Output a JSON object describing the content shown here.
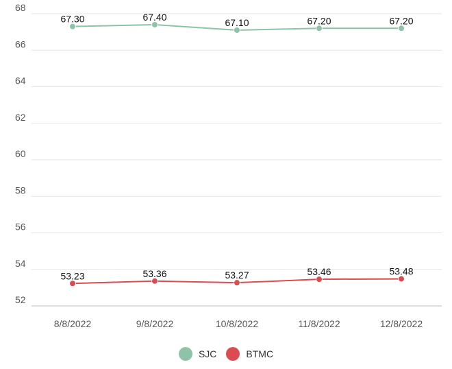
{
  "chart_data": {
    "type": "line",
    "title": "",
    "xlabel": "",
    "ylabel": "",
    "categories": [
      "8/8/2022",
      "9/8/2022",
      "10/8/2022",
      "11/8/2022",
      "12/8/2022"
    ],
    "ylim": [
      52,
      68
    ],
    "yticks": [
      "52",
      "54",
      "56",
      "58",
      "60",
      "62",
      "64",
      "66",
      "68"
    ],
    "grid": true,
    "legend_position": "bottom",
    "series": [
      {
        "name": "SJC",
        "color": "#8dc3a7",
        "values": [
          67.3,
          67.4,
          67.1,
          67.2,
          67.2
        ],
        "labels": [
          "67.30",
          "67.40",
          "67.10",
          "67.20",
          "67.20"
        ]
      },
      {
        "name": "BTMC",
        "color": "#dc4b4f",
        "values": [
          53.23,
          53.36,
          53.27,
          53.46,
          53.48
        ],
        "labels": [
          "53.23",
          "53.36",
          "53.27",
          "53.46",
          "53.48"
        ]
      }
    ]
  }
}
